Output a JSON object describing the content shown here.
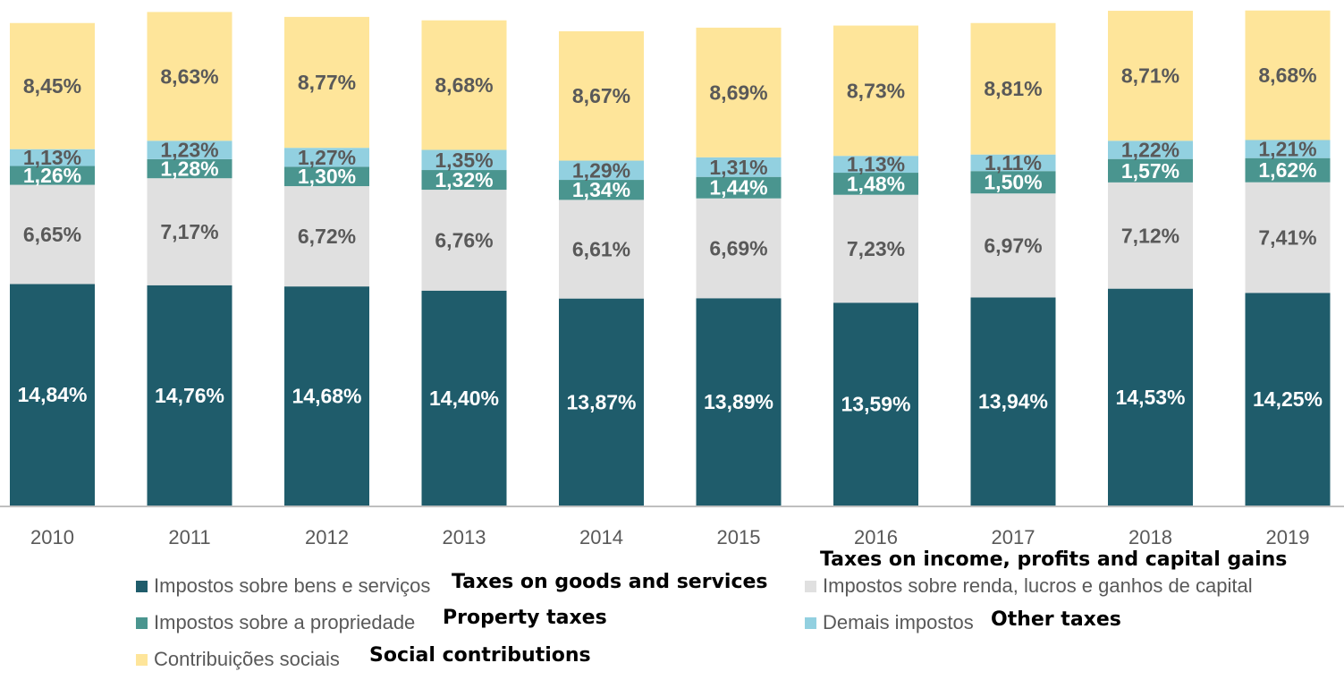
{
  "chart_data": {
    "type": "bar",
    "stacked": true,
    "categories": [
      "2010",
      "2011",
      "2012",
      "2013",
      "2014",
      "2015",
      "2016",
      "2017",
      "2018",
      "2019"
    ],
    "series": [
      {
        "name": "Impostos sobre bens e serviços",
        "color": "#1F5C6B",
        "values": [
          14.84,
          14.76,
          14.68,
          14.4,
          13.87,
          13.89,
          13.59,
          13.94,
          14.53,
          14.25
        ],
        "labels": [
          "14,84%",
          "14,76%",
          "14,68%",
          "14,40%",
          "13,87%",
          "13,89%",
          "13,59%",
          "13,94%",
          "14,53%",
          "14,25%"
        ]
      },
      {
        "name": "Impostos sobre renda, lucros e ganhos de capital",
        "color": "#E0E0E0",
        "values": [
          6.65,
          7.17,
          6.72,
          6.76,
          6.61,
          6.69,
          7.23,
          6.97,
          7.12,
          7.41
        ],
        "labels": [
          "6,65%",
          "7,17%",
          "6,72%",
          "6,76%",
          "6,61%",
          "6,69%",
          "7,23%",
          "6,97%",
          "7,12%",
          "7,41%"
        ]
      },
      {
        "name": "Impostos sobre a propriedade",
        "color": "#4A958F",
        "values": [
          1.26,
          1.28,
          1.3,
          1.32,
          1.34,
          1.44,
          1.48,
          1.5,
          1.57,
          1.62
        ],
        "labels": [
          "1,26%",
          "1,28%",
          "1,30%",
          "1,32%",
          "1,34%",
          "1,44%",
          "1,48%",
          "1,50%",
          "1,57%",
          "1,62%"
        ]
      },
      {
        "name": "Demais impostos",
        "color": "#92D0E0",
        "values": [
          1.13,
          1.23,
          1.27,
          1.35,
          1.29,
          1.31,
          1.13,
          1.11,
          1.22,
          1.21
        ],
        "labels": [
          "1,13%",
          "1,23%",
          "1,27%",
          "1,35%",
          "1,29%",
          "1,31%",
          "1,13%",
          "1,11%",
          "1,22%",
          "1,21%"
        ]
      },
      {
        "name": "Contribuições sociais",
        "color": "#FEE59A",
        "values": [
          8.45,
          8.63,
          8.77,
          8.68,
          8.67,
          8.69,
          8.73,
          8.81,
          8.71,
          8.68
        ],
        "labels": [
          "8,45%",
          "8,63%",
          "8,77%",
          "8,68%",
          "8,67%",
          "8,69%",
          "8,73%",
          "8,81%",
          "8,71%",
          "8,68%"
        ]
      }
    ],
    "legend_position": "bottom",
    "grid": false
  },
  "legend": {
    "goods_pt": "Impostos sobre bens e serviços",
    "goods_en": "Taxes on goods and services",
    "income_pt": "Impostos sobre renda, lucros e ganhos de capital",
    "income_en": "Taxes on income, profits and capital gains",
    "property_pt": "Impostos sobre a propriedade",
    "property_en": "Property taxes",
    "other_pt": "Demais impostos",
    "other_en": "Other taxes",
    "social_pt": "Contribuições sociais",
    "social_en": "Social contributions"
  },
  "colors": {
    "label_dark": "#FFFFFF",
    "label_light": "#595959",
    "axis": "#BFBFBF"
  }
}
